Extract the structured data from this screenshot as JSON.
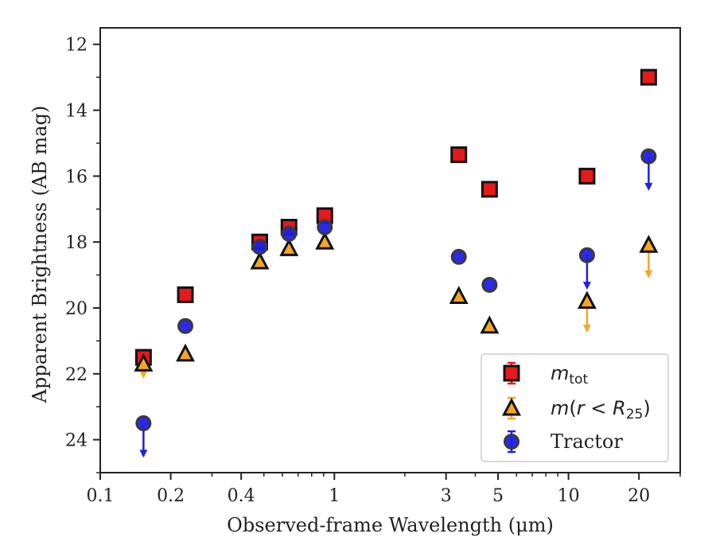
{
  "chart_data": {
    "type": "scatter",
    "xlabel": "Observed-frame Wavelength (μm)",
    "ylabel": "Apparent Brightness (AB mag)",
    "xscale": "log",
    "xlim": [
      0.1,
      30
    ],
    "ylim": [
      25,
      11.5
    ],
    "y_inverted": true,
    "xticks": [
      {
        "value": 0.1,
        "label": "0.1"
      },
      {
        "value": 0.2,
        "label": "0.2"
      },
      {
        "value": 0.4,
        "label": "0.4"
      },
      {
        "value": 1,
        "label": "1"
      },
      {
        "value": 3,
        "label": "3"
      },
      {
        "value": 5,
        "label": "5"
      },
      {
        "value": 10,
        "label": "10"
      },
      {
        "value": 20,
        "label": "20"
      }
    ],
    "yticks": [
      12,
      14,
      16,
      18,
      20,
      22,
      24
    ],
    "legend_position": "lower-right",
    "series": [
      {
        "name": "m_tot",
        "marker": "square",
        "color": "#e41a1c",
        "points": [
          {
            "x": 0.153,
            "y": 21.5
          },
          {
            "x": 0.231,
            "y": 19.6
          },
          {
            "x": 0.48,
            "y": 18.0
          },
          {
            "x": 0.64,
            "y": 17.55
          },
          {
            "x": 0.91,
            "y": 17.2
          },
          {
            "x": 3.4,
            "y": 15.35
          },
          {
            "x": 4.6,
            "y": 16.4
          },
          {
            "x": 12.0,
            "y": 16.0
          },
          {
            "x": 22.0,
            "y": 13.0
          }
        ]
      },
      {
        "name": "m(r < R25)",
        "marker": "triangle",
        "color": "#f5a623",
        "points": [
          {
            "x": 0.153,
            "y": 21.7,
            "upper_limit": true,
            "err": 0.4
          },
          {
            "x": 0.231,
            "y": 21.4
          },
          {
            "x": 0.48,
            "y": 18.6
          },
          {
            "x": 0.64,
            "y": 18.2
          },
          {
            "x": 0.91,
            "y": 18.0
          },
          {
            "x": 3.4,
            "y": 19.65
          },
          {
            "x": 4.6,
            "y": 20.55
          },
          {
            "x": 12.0,
            "y": 19.8,
            "upper_limit": true,
            "err": 0.9
          },
          {
            "x": 22.0,
            "y": 18.1,
            "upper_limit": true,
            "err": 0.95
          }
        ]
      },
      {
        "name": "Tractor",
        "marker": "circle",
        "color": "#1f1fe6",
        "points": [
          {
            "x": 0.153,
            "y": 23.5,
            "upper_limit": true,
            "err": 1.0
          },
          {
            "x": 0.231,
            "y": 20.55
          },
          {
            "x": 0.48,
            "y": 18.15
          },
          {
            "x": 0.64,
            "y": 17.75
          },
          {
            "x": 0.91,
            "y": 17.55
          },
          {
            "x": 3.4,
            "y": 18.45
          },
          {
            "x": 4.6,
            "y": 19.3
          },
          {
            "x": 12.0,
            "y": 18.4,
            "upper_limit": true,
            "err": 1.0
          },
          {
            "x": 22.0,
            "y": 15.4,
            "upper_limit": true,
            "err": 1.0
          }
        ]
      }
    ]
  }
}
